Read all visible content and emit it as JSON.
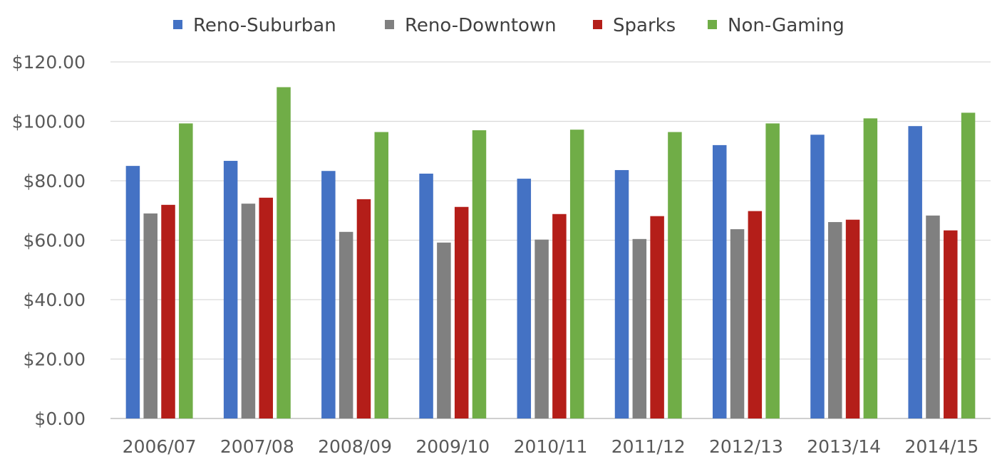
{
  "chart_data": {
    "type": "bar",
    "title": "",
    "xlabel": "",
    "ylabel": "",
    "ylim": [
      0,
      120
    ],
    "yticks": [
      0,
      20,
      40,
      60,
      80,
      100,
      120
    ],
    "ytick_labels": [
      "$0.00",
      "$20.00",
      "$40.00",
      "$60.00",
      "$80.00",
      "$100.00",
      "$120.00"
    ],
    "grid": true,
    "legend_position": "top",
    "categories": [
      "2006/07",
      "2007/08",
      "2008/09",
      "2009/10",
      "2010/11",
      "2011/12",
      "2012/13",
      "2013/14",
      "2014/15"
    ],
    "series": [
      {
        "name": "Reno-Suburban",
        "color": "#4472C4",
        "values": [
          85.0,
          86.7,
          83.3,
          82.4,
          80.7,
          83.6,
          92.0,
          95.5,
          98.4
        ]
      },
      {
        "name": "Reno-Downtown",
        "color": "#808080",
        "values": [
          69.0,
          72.3,
          62.8,
          59.2,
          60.2,
          60.4,
          63.7,
          66.1,
          68.3
        ]
      },
      {
        "name": "Sparks",
        "color": "#B41E19",
        "values": [
          71.9,
          74.3,
          73.8,
          71.2,
          68.8,
          68.1,
          69.8,
          66.9,
          63.3
        ]
      },
      {
        "name": "Non-Gaming",
        "color": "#70AD47",
        "values": [
          99.3,
          111.5,
          96.4,
          97.0,
          97.2,
          96.4,
          99.3,
          101.0,
          102.9
        ]
      }
    ]
  }
}
